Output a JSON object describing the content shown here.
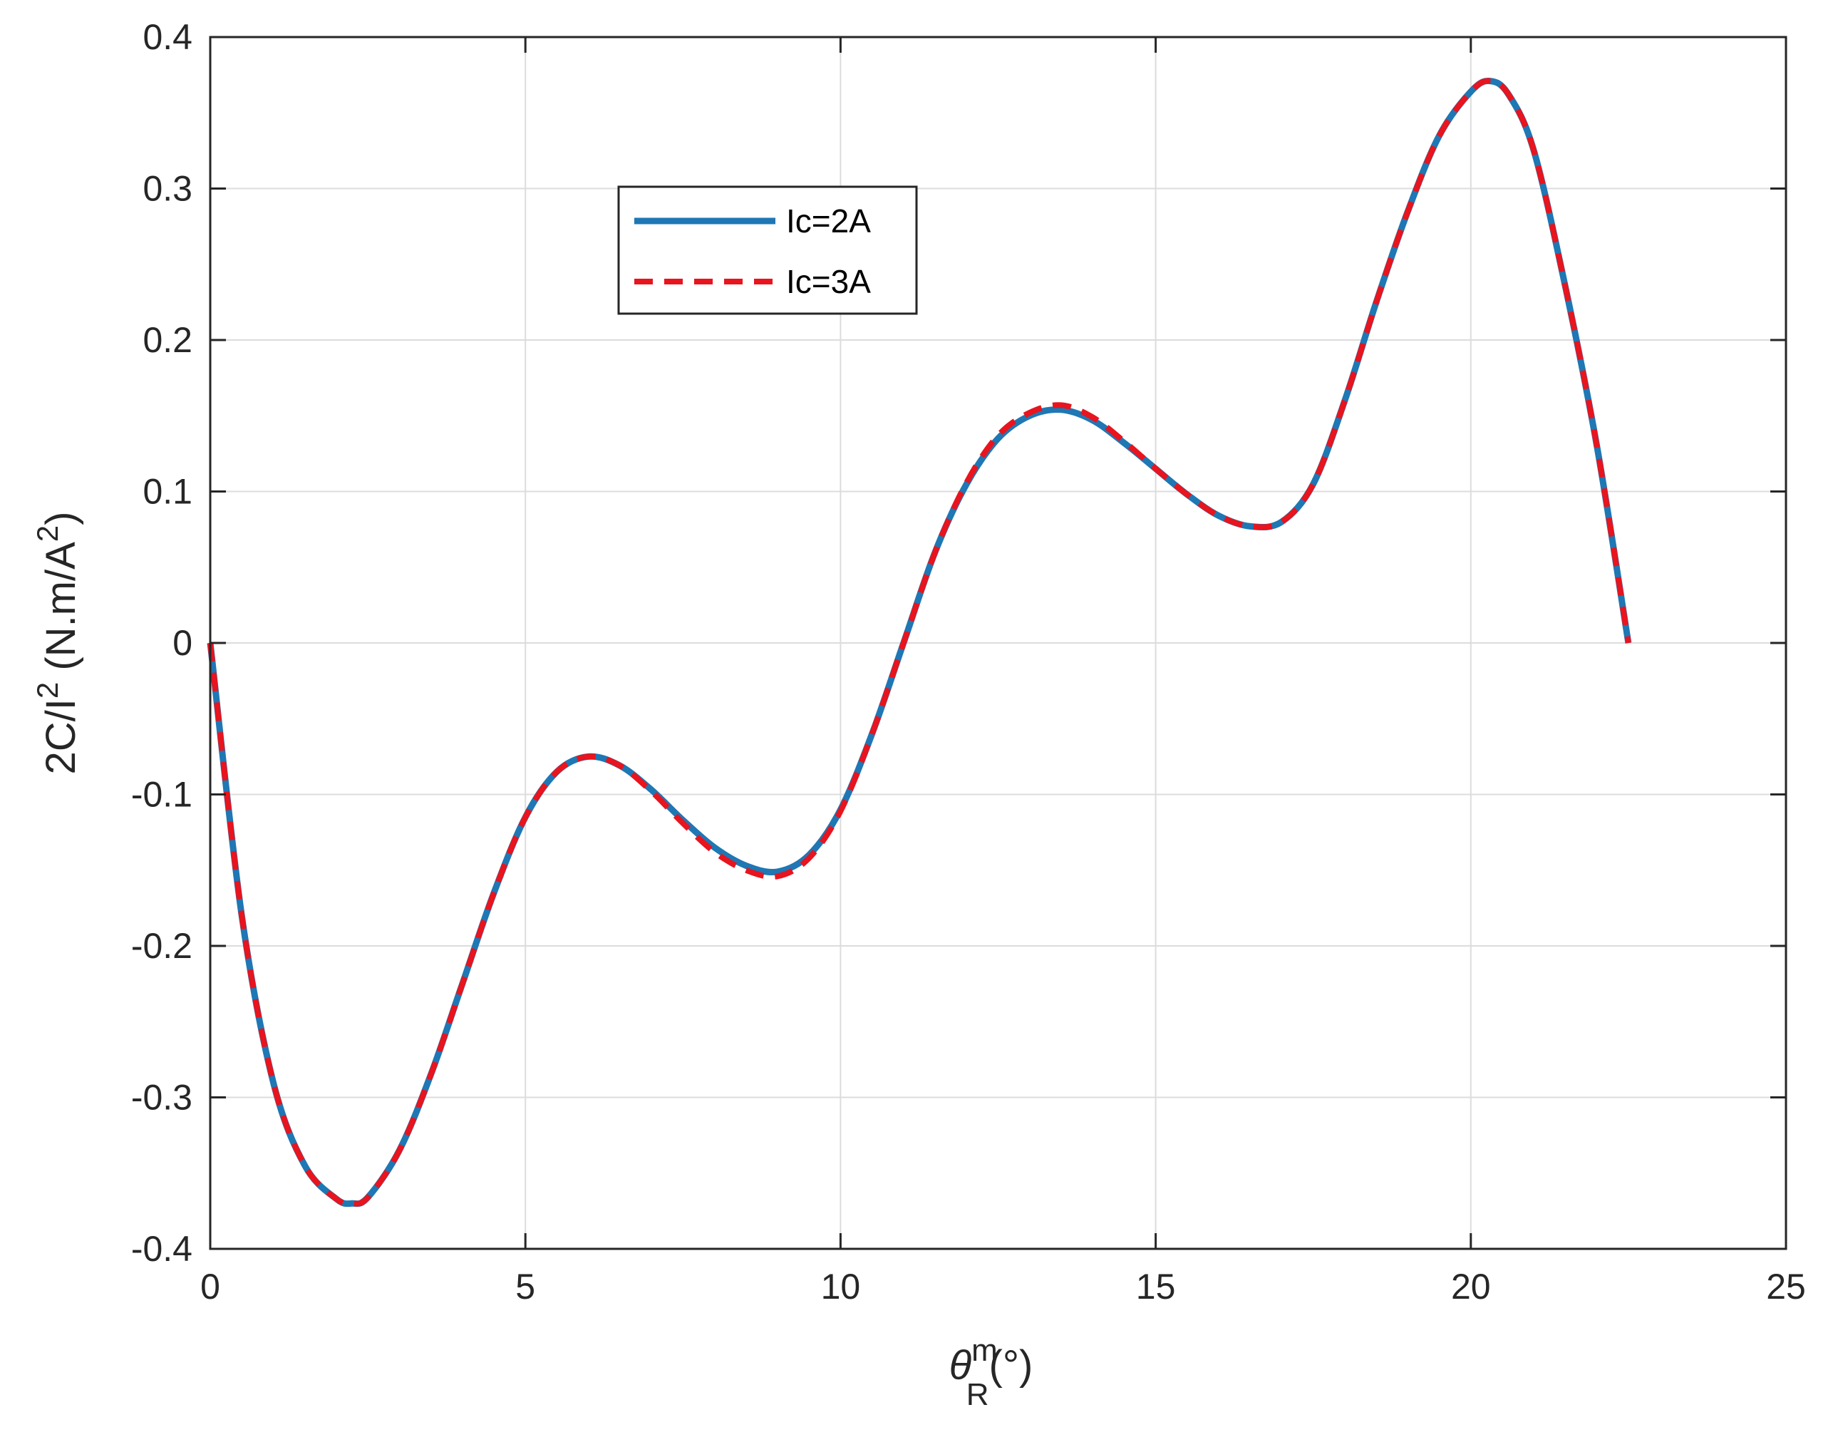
{
  "chart_data": {
    "type": "line",
    "xlabel": {
      "base": "θ",
      "sup": "m",
      "sub": "R",
      "unit": "(°)"
    },
    "ylabel": {
      "prefix": "2C/I",
      "sup": "2",
      "unit_open": " (N.m/A",
      "unit_sup": "2",
      "unit_close": ")"
    },
    "xlim": [
      0,
      25
    ],
    "ylim": [
      -0.4,
      0.4
    ],
    "xticks": [
      0,
      5,
      10,
      15,
      20,
      25
    ],
    "xtick_labels": [
      "0",
      "5",
      "10",
      "15",
      "20",
      "25"
    ],
    "yticks": [
      -0.4,
      -0.3,
      -0.2,
      -0.1,
      0,
      0.1,
      0.2,
      0.3,
      0.4
    ],
    "ytick_labels": [
      "-0.4",
      "-0.3",
      "-0.2",
      "-0.1",
      "0",
      "0.1",
      "0.2",
      "0.3",
      "0.4"
    ],
    "grid": true,
    "legend_position": "upper-center-left",
    "series": [
      {
        "name": "Ic=2A",
        "color": "#1f77b4",
        "style": "solid",
        "points": [
          [
            0.0,
            0.0
          ],
          [
            0.5,
            -0.18
          ],
          [
            1.0,
            -0.29
          ],
          [
            1.5,
            -0.345
          ],
          [
            2.0,
            -0.367
          ],
          [
            2.25,
            -0.37
          ],
          [
            2.5,
            -0.366
          ],
          [
            3.0,
            -0.335
          ],
          [
            3.5,
            -0.285
          ],
          [
            4.0,
            -0.225
          ],
          [
            4.5,
            -0.165
          ],
          [
            5.0,
            -0.115
          ],
          [
            5.5,
            -0.085
          ],
          [
            6.0,
            -0.075
          ],
          [
            6.5,
            -0.081
          ],
          [
            7.0,
            -0.097
          ],
          [
            7.5,
            -0.117
          ],
          [
            8.0,
            -0.135
          ],
          [
            8.5,
            -0.147
          ],
          [
            9.0,
            -0.151
          ],
          [
            9.5,
            -0.14
          ],
          [
            10.0,
            -0.11
          ],
          [
            10.5,
            -0.06
          ],
          [
            11.0,
            0.0
          ],
          [
            11.5,
            0.06
          ],
          [
            12.0,
            0.105
          ],
          [
            12.5,
            0.135
          ],
          [
            13.0,
            0.15
          ],
          [
            13.5,
            0.154
          ],
          [
            14.0,
            0.147
          ],
          [
            14.5,
            0.132
          ],
          [
            15.0,
            0.115
          ],
          [
            15.5,
            0.098
          ],
          [
            16.0,
            0.084
          ],
          [
            16.5,
            0.077
          ],
          [
            17.0,
            0.08
          ],
          [
            17.5,
            0.105
          ],
          [
            18.0,
            0.16
          ],
          [
            18.5,
            0.225
          ],
          [
            19.0,
            0.285
          ],
          [
            19.5,
            0.335
          ],
          [
            20.0,
            0.364
          ],
          [
            20.3,
            0.371
          ],
          [
            20.6,
            0.362
          ],
          [
            21.0,
            0.325
          ],
          [
            21.5,
            0.235
          ],
          [
            22.0,
            0.13
          ],
          [
            22.5,
            0.0
          ]
        ]
      },
      {
        "name": "Ic=3A",
        "color": "#e8141e",
        "style": "dashed",
        "points": [
          [
            0.0,
            0.0
          ],
          [
            0.5,
            -0.18
          ],
          [
            1.0,
            -0.29
          ],
          [
            1.5,
            -0.345
          ],
          [
            2.0,
            -0.367
          ],
          [
            2.25,
            -0.37
          ],
          [
            2.5,
            -0.366
          ],
          [
            3.0,
            -0.335
          ],
          [
            3.5,
            -0.285
          ],
          [
            4.0,
            -0.225
          ],
          [
            4.5,
            -0.165
          ],
          [
            5.0,
            -0.115
          ],
          [
            5.5,
            -0.085
          ],
          [
            6.0,
            -0.075
          ],
          [
            6.5,
            -0.081
          ],
          [
            7.0,
            -0.098
          ],
          [
            7.5,
            -0.119
          ],
          [
            8.0,
            -0.138
          ],
          [
            8.5,
            -0.15
          ],
          [
            9.0,
            -0.154
          ],
          [
            9.5,
            -0.142
          ],
          [
            10.0,
            -0.111
          ],
          [
            10.5,
            -0.06
          ],
          [
            11.0,
            0.0
          ],
          [
            11.5,
            0.06
          ],
          [
            12.0,
            0.106
          ],
          [
            12.5,
            0.137
          ],
          [
            13.0,
            0.152
          ],
          [
            13.5,
            0.157
          ],
          [
            14.0,
            0.149
          ],
          [
            14.5,
            0.133
          ],
          [
            15.0,
            0.115
          ],
          [
            15.5,
            0.098
          ],
          [
            16.0,
            0.084
          ],
          [
            16.5,
            0.077
          ],
          [
            17.0,
            0.08
          ],
          [
            17.5,
            0.105
          ],
          [
            18.0,
            0.16
          ],
          [
            18.5,
            0.225
          ],
          [
            19.0,
            0.285
          ],
          [
            19.5,
            0.335
          ],
          [
            20.0,
            0.364
          ],
          [
            20.3,
            0.371
          ],
          [
            20.6,
            0.362
          ],
          [
            21.0,
            0.325
          ],
          [
            21.5,
            0.235
          ],
          [
            22.0,
            0.13
          ],
          [
            22.5,
            0.0
          ]
        ]
      }
    ]
  }
}
